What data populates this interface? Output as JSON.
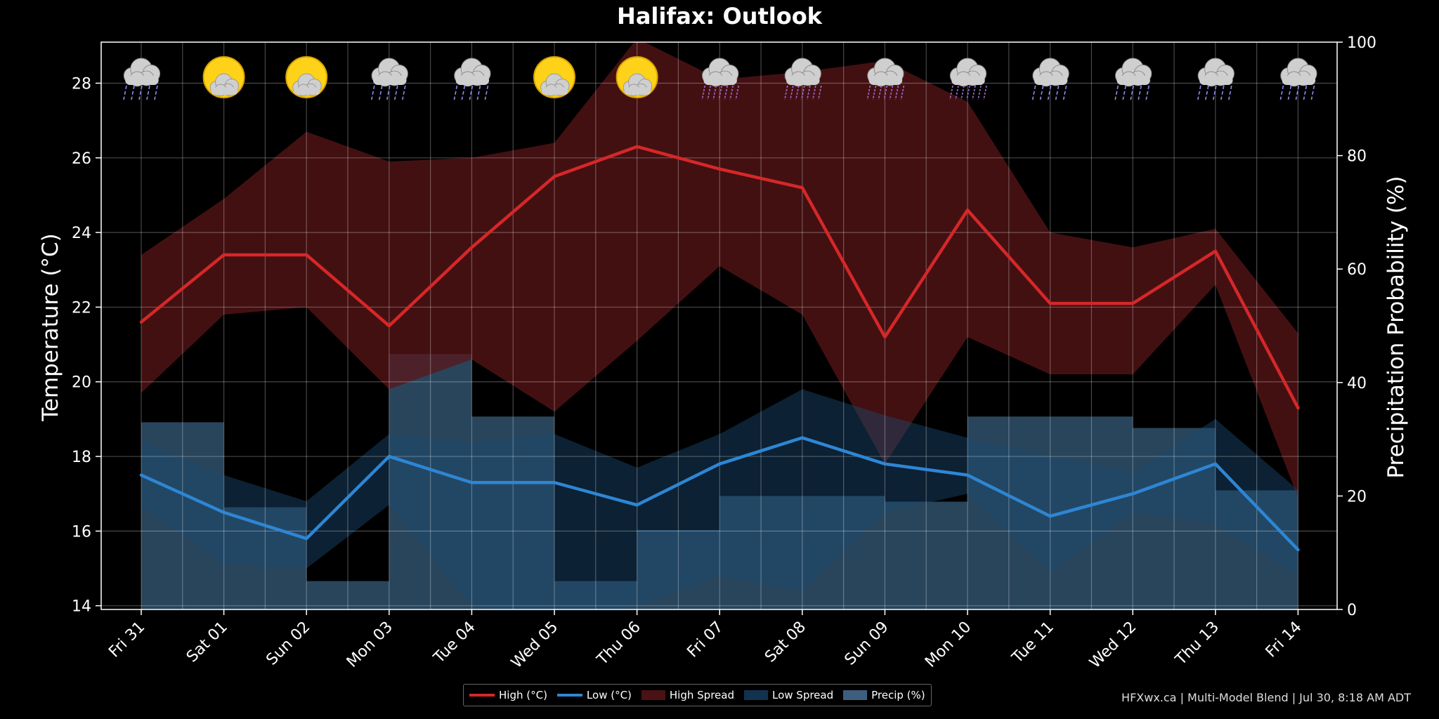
{
  "chart_data": {
    "type": "line",
    "title": "Halifax: Outlook",
    "ylabel": "Temperature (°C)",
    "y2label": "Precipitation Probability (%)",
    "ylim": [
      13.9,
      29.1
    ],
    "y2lim": [
      0,
      100
    ],
    "yticks": [
      "14",
      "16",
      "18",
      "20",
      "22",
      "24",
      "26",
      "28"
    ],
    "y2ticks": [
      "0",
      "20",
      "40",
      "60",
      "80",
      "100"
    ],
    "grid": true,
    "legend_position": "bottom-center",
    "categories": [
      "Fri 31",
      "Sat 01",
      "Sun 02",
      "Mon 03",
      "Tue 04",
      "Wed 05",
      "Thu 06",
      "Fri 07",
      "Sat 08",
      "Sun 09",
      "Mon 10",
      "Tue 11",
      "Wed 12",
      "Thu 13",
      "Fri 14"
    ],
    "icons": [
      "rain-icon",
      "sun-behind-cloud-icon",
      "sun-behind-cloud-icon",
      "rain-icon",
      "rain-icon",
      "sun-behind-cloud-icon",
      "sun-behind-cloud-icon",
      "heavy-rain-icon",
      "heavy-rain-icon",
      "heavy-rain-icon",
      "heavy-rain-icon",
      "rain-icon",
      "rain-icon",
      "rain-icon",
      "rain-icon"
    ],
    "series": [
      {
        "name": "High (°C)",
        "kind": "line",
        "axis": "left",
        "color": "#d62728",
        "values": [
          21.6,
          23.4,
          23.4,
          21.5,
          23.6,
          25.5,
          26.3,
          25.7,
          25.2,
          21.2,
          24.6,
          22.1,
          22.1,
          23.5,
          19.3
        ]
      },
      {
        "name": "Low (°C)",
        "kind": "line",
        "axis": "left",
        "color": "#2e86d4",
        "values": [
          17.5,
          16.5,
          15.8,
          18.0,
          17.3,
          17.3,
          16.7,
          17.8,
          18.5,
          17.8,
          17.5,
          16.4,
          17.0,
          17.8,
          15.5
        ]
      },
      {
        "name": "High Spread",
        "kind": "band",
        "axis": "left",
        "color": "#4a1214",
        "upper": [
          23.4,
          24.9,
          26.7,
          25.9,
          26.0,
          26.4,
          29.2,
          28.1,
          28.3,
          28.6,
          27.5,
          24.0,
          23.6,
          24.1,
          21.3
        ],
        "lower": [
          19.7,
          21.8,
          22.0,
          19.8,
          20.6,
          19.2,
          21.1,
          23.1,
          21.8,
          17.8,
          21.2,
          20.2,
          20.2,
          22.6,
          16.9
        ]
      },
      {
        "name": "Low Spread",
        "kind": "band",
        "axis": "left",
        "color": "#12324f",
        "upper": [
          18.4,
          17.5,
          16.8,
          18.6,
          18.4,
          18.6,
          17.7,
          18.6,
          19.8,
          19.1,
          18.5,
          18.0,
          17.6,
          19.0,
          17.1
        ],
        "lower": [
          16.7,
          15.1,
          15.0,
          16.7,
          14.0,
          13.5,
          14.0,
          14.8,
          14.4,
          16.5,
          17.0,
          14.9,
          16.5,
          16.2,
          14.8
        ]
      },
      {
        "name": "Precip (%)",
        "kind": "step",
        "axis": "right",
        "color": "#4a7da8",
        "values": [
          33,
          18,
          5,
          45,
          34,
          5,
          14,
          20,
          20,
          19,
          34,
          34,
          32,
          21,
          21
        ]
      }
    ]
  },
  "legend": {
    "high_label": "High (°C)",
    "low_label": "Low (°C)",
    "high_spread_label": "High Spread",
    "low_spread_label": "Low Spread",
    "precip_label": "Precip (%)"
  },
  "credit": "HFXwx.ca | Multi-Model Blend | Jul 30, 8:18 AM ADT"
}
